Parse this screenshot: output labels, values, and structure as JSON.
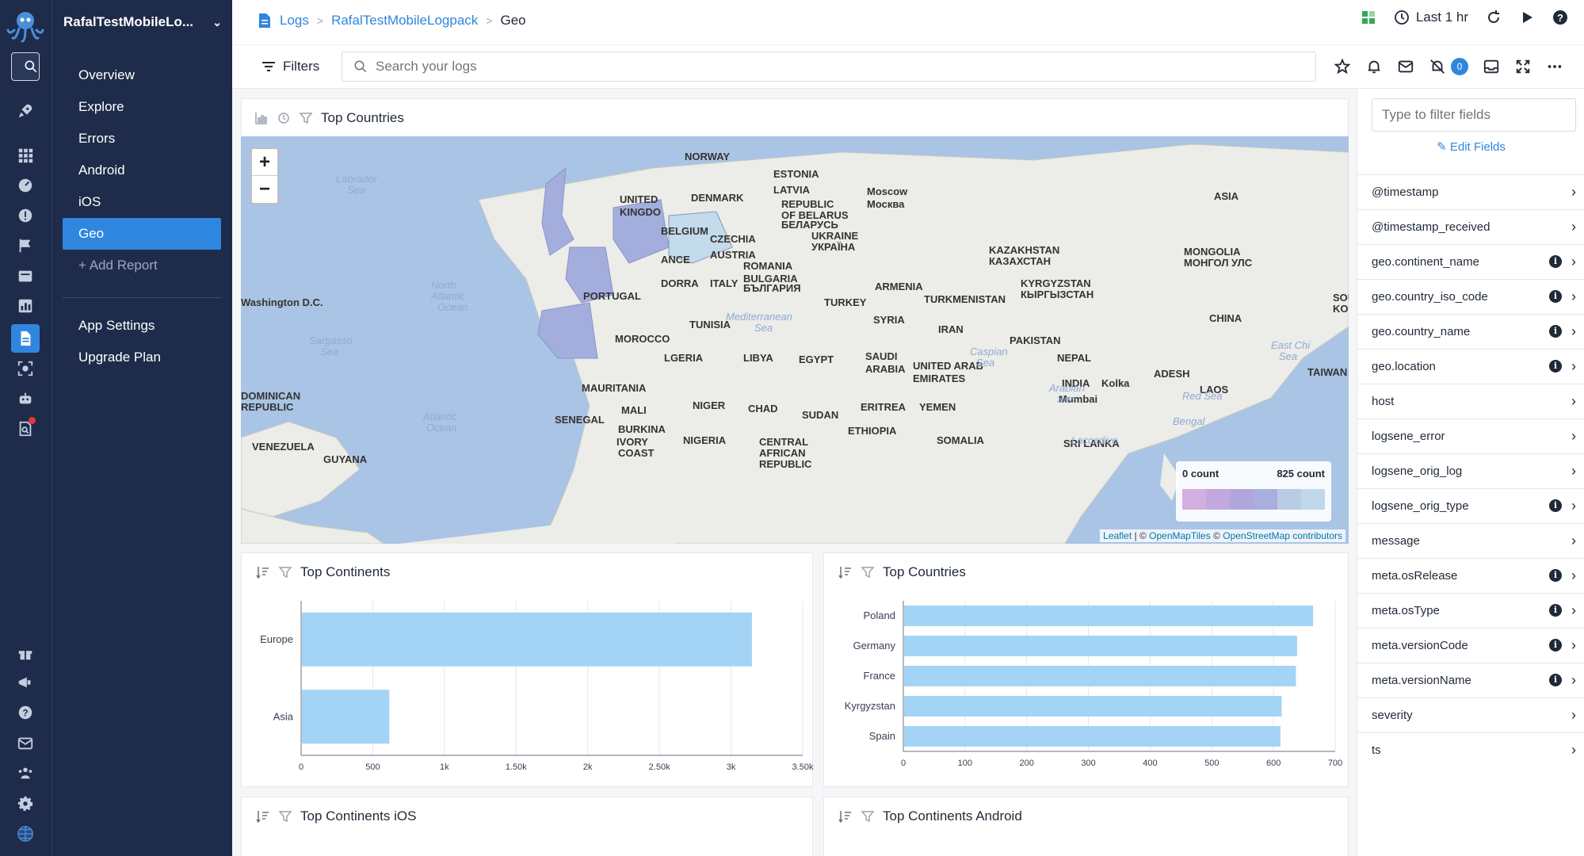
{
  "app": {
    "name": "RafalTestMobileLo..."
  },
  "nav": {
    "items": [
      {
        "label": "Overview"
      },
      {
        "label": "Explore"
      },
      {
        "label": "Errors"
      },
      {
        "label": "Android"
      },
      {
        "label": "iOS"
      },
      {
        "label": "Geo"
      }
    ],
    "add_report": "Add Report",
    "app_settings": "App Settings",
    "upgrade_plan": "Upgrade Plan"
  },
  "breadcrumb": {
    "root": "Logs",
    "app": "RafalTestMobileLogpack",
    "current": "Geo"
  },
  "header": {
    "time_range": "Last 1 hr"
  },
  "toolbar": {
    "filters_label": "Filters",
    "search_placeholder": "Search your logs",
    "alerts_count": "0"
  },
  "map_panel": {
    "title": "Top Countries",
    "legend_min": "0 count",
    "legend_max": "825 count",
    "attribution": {
      "leaflet": "Leaflet",
      "sep1": " | © ",
      "omt": "OpenMapTiles",
      "sep2": " © ",
      "osm": "OpenStreetMap contributors"
    },
    "labels": [
      "NORWAY",
      "ESTONIA",
      "LATVIA",
      "UNITED",
      "KINGDO",
      "DENMARK",
      "REPUBLIC",
      "OF BELARUS",
      "БЕЛАРУСЬ",
      "Moscow",
      "Москва",
      "BELGIUM",
      "CZECHIA",
      "UKRAINE",
      "УКРАЇНА",
      "ANCE",
      "AUSTRIA",
      "ROMANIA",
      "BULGARIA",
      "БЪЛГАРИЯ",
      "DORRA",
      "ITALY",
      "PORTUGAL",
      "Washington D.C.",
      "TURKEY",
      "ARMENIA",
      "TURKMENISTAN",
      "KYRGYZSTAN",
      "КЫРГЫЗСТАН",
      "KAZAKHSTAN",
      "КАЗАХСТАН",
      "MONGOLIA",
      "МОНГОЛ УЛС",
      "ASIA",
      "TUNISIA",
      "SYRIA",
      "IRAN",
      "PAKISTAN",
      "CHINA",
      "MOROCCO",
      "LGERIA",
      "LIBYA",
      "EGYPT",
      "SAUDI",
      "ARABIA",
      "UNITED ARAB",
      "EMIRATES",
      "NEPAL",
      "INDIA",
      "Kolka",
      "ADESH",
      "TAIWAN",
      "DOMINICAN",
      "REPUBLIC",
      "MAURITANIA",
      "MALI",
      "NIGER",
      "CHAD",
      "SUDAN",
      "ERITREA",
      "YEMEN",
      "Mumbai",
      "LAOS",
      "SENEGAL",
      "BURKINA",
      "IVORY",
      "COAST",
      "NIGERIA",
      "CENTRAL",
      "AFRICAN",
      "REPUBLIC",
      "ETHIOPIA",
      "SOMALIA",
      "SRI LANKA",
      "VENEZUELA",
      "GUYANA",
      "SOU",
      "KOR"
    ],
    "seas": [
      "Labrador",
      "Sea",
      "North",
      "Atlantic",
      "Ocean",
      "Sargasso",
      "Sea",
      "Atlantic",
      "Ocean",
      "Mediterranean",
      "Sea",
      "Caspian",
      "Sea",
      "Arabian",
      "Sea",
      "Red Sea",
      "East Chi",
      "Sea",
      "Bengal",
      "Laccadive"
    ]
  },
  "colors": {
    "accent": "#2f86de",
    "sidebar": "#1e2b4a",
    "bar": "#a3d4f5"
  },
  "charts": {
    "continents_title": "Top Continents",
    "countries_title": "Top Countries",
    "continents_ios_title": "Top Continents iOS",
    "continents_android_title": "Top Continents Android"
  },
  "chart_data": [
    {
      "type": "bar",
      "orientation": "horizontal",
      "title": "Top Continents",
      "categories": [
        "Europe",
        "Asia"
      ],
      "values": [
        3140,
        610
      ],
      "xlim": [
        0,
        3500
      ],
      "xticks": [
        "0",
        "500",
        "1k",
        "1.50k",
        "2k",
        "2.50k",
        "3k",
        "3.50k"
      ],
      "grid": true
    },
    {
      "type": "bar",
      "orientation": "horizontal",
      "title": "Top Countries",
      "categories": [
        "Poland",
        "Germany",
        "France",
        "Kyrgyzstan",
        "Spain"
      ],
      "values": [
        663,
        637,
        635,
        612,
        610
      ],
      "xlim": [
        0,
        700
      ],
      "xticks": [
        "0",
        "100",
        "200",
        "300",
        "400",
        "500",
        "600",
        "700"
      ],
      "grid": true
    }
  ],
  "fields": {
    "filter_placeholder": "Type to filter fields",
    "edit_label": "Edit Fields",
    "list": [
      {
        "name": "@timestamp",
        "info": false
      },
      {
        "name": "@timestamp_received",
        "info": false
      },
      {
        "name": "geo.continent_name",
        "info": true
      },
      {
        "name": "geo.country_iso_code",
        "info": true
      },
      {
        "name": "geo.country_name",
        "info": true
      },
      {
        "name": "geo.location",
        "info": true
      },
      {
        "name": "host",
        "info": false
      },
      {
        "name": "logsene_error",
        "info": false
      },
      {
        "name": "logsene_orig_log",
        "info": false
      },
      {
        "name": "logsene_orig_type",
        "info": true
      },
      {
        "name": "message",
        "info": false
      },
      {
        "name": "meta.osRelease",
        "info": true
      },
      {
        "name": "meta.osType",
        "info": true
      },
      {
        "name": "meta.versionCode",
        "info": true
      },
      {
        "name": "meta.versionName",
        "info": true
      },
      {
        "name": "severity",
        "info": false
      },
      {
        "name": "ts",
        "info": false
      }
    ]
  }
}
